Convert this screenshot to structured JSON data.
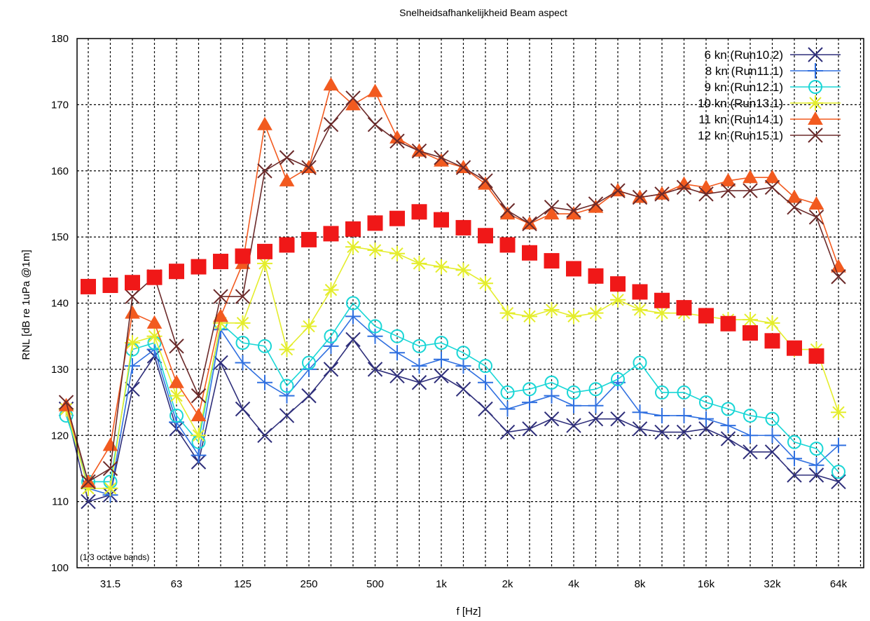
{
  "chart_data": {
    "type": "line",
    "title": "Snelheidsafhankelijkheid Beam aspect",
    "xlabel": "f [Hz]",
    "ylabel": "RNL [dB re 1uPa @1m]",
    "note": "(1/3 octave bands)",
    "x_scale": "log (1/3 octave bands)",
    "x_bands": [
      20,
      25,
      31.5,
      40,
      50,
      63,
      80,
      100,
      125,
      160,
      200,
      250,
      315,
      400,
      500,
      630,
      800,
      1000,
      1250,
      1600,
      2000,
      2500,
      3150,
      4000,
      5000,
      6300,
      8000,
      10000,
      12500,
      16000,
      20000,
      25000,
      31500,
      40000,
      50000,
      63000,
      80000
    ],
    "x_tick_labels": [
      "31.5",
      "63",
      "125",
      "250",
      "500",
      "1k",
      "2k",
      "4k",
      "8k",
      "16k",
      "32k",
      "64k"
    ],
    "x_tick_values": [
      31.5,
      63,
      125,
      250,
      500,
      1000,
      2000,
      4000,
      8000,
      16000,
      32000,
      64000
    ],
    "y_ticks": [
      "100",
      "110",
      "120",
      "130",
      "140",
      "150",
      "160",
      "170",
      "180"
    ],
    "ylim": [
      100,
      180
    ],
    "grid": true,
    "legend_position": "top-right",
    "series": [
      {
        "name": "6 kn (Run10.2)",
        "color": "#2e2e7a",
        "marker": "x",
        "values": [
          124,
          110,
          111,
          127,
          132,
          121,
          116,
          131,
          124,
          120,
          123,
          126,
          130,
          134.5,
          130,
          129,
          128,
          129,
          127,
          124,
          120.5,
          121,
          122.5,
          121.5,
          122.5,
          122.5,
          121,
          120.5,
          120.5,
          121,
          119.5,
          117.5,
          117.5,
          114,
          114,
          113
        ]
      },
      {
        "name": "8 kn (Run11.1)",
        "color": "#3070e0",
        "marker": "plus",
        "values": [
          124,
          112,
          111,
          130.5,
          133,
          122,
          117,
          136,
          131,
          128,
          126,
          130,
          133.5,
          138,
          135,
          132.5,
          130.5,
          131.5,
          130.5,
          128,
          124,
          125,
          126,
          124.5,
          124.5,
          128,
          123.5,
          123,
          123,
          122.5,
          121.5,
          120,
          120,
          116.5,
          115.5,
          118.5
        ]
      },
      {
        "name": "9 kn (Run12.1)",
        "color": "#19d6d6",
        "marker": "circle",
        "values": [
          123,
          113,
          113,
          133,
          134,
          123,
          119,
          137,
          134,
          133.5,
          127.5,
          131,
          135,
          140,
          136.5,
          135,
          133.5,
          134,
          132.5,
          130.5,
          126.5,
          127,
          128,
          126.5,
          127,
          128.5,
          131,
          126.5,
          126.5,
          125,
          124,
          123,
          122.5,
          119,
          118,
          114.5
        ]
      },
      {
        "name": "10 kn (Run13.1)",
        "color": "#e4ed2c",
        "marker": "star",
        "values": [
          124,
          112,
          112,
          134,
          135,
          126,
          120,
          137,
          137,
          146,
          133,
          136.5,
          142,
          148.5,
          148,
          147.5,
          146,
          145.5,
          145,
          143,
          138.5,
          138,
          139,
          138,
          138.5,
          140.5,
          139,
          138.5,
          138.5,
          138,
          137.5,
          137.5,
          137,
          133,
          133,
          123.5
        ]
      },
      {
        "name": "11 kn (Run14.1)",
        "color": "#f25a1f",
        "marker": "triangle",
        "values": [
          124.5,
          113,
          118.5,
          138.5,
          137,
          128,
          123,
          138,
          146,
          167,
          158.5,
          160.5,
          173,
          170,
          172,
          165,
          163,
          161.5,
          160.5,
          158,
          153.5,
          152,
          153.5,
          153.5,
          154.5,
          157,
          156,
          156.5,
          158,
          157.5,
          158.5,
          159,
          159,
          156,
          155,
          145.5
        ]
      },
      {
        "name": "12 kn (Run15.1)",
        "color": "#6b2a2a",
        "marker": "x",
        "values": [
          125,
          113,
          115,
          141,
          144,
          133.5,
          126,
          141,
          141,
          160,
          162,
          160.5,
          167,
          171,
          167,
          164.5,
          163,
          162,
          160.5,
          158.5,
          154,
          152,
          154.5,
          154,
          155,
          157,
          156,
          156.5,
          157.5,
          156.5,
          157,
          157,
          157.5,
          154.5,
          153,
          144
        ]
      },
      {
        "name": "",
        "color": "#f01818",
        "marker": "square",
        "x_start_band": 1,
        "values": [
          142.5,
          142.7,
          143.1,
          143.9,
          144.8,
          145.5,
          146.3,
          147.1,
          147.8,
          148.8,
          149.6,
          150.5,
          151.2,
          152.1,
          152.8,
          153.8,
          152.6,
          151.4,
          150.2,
          148.8,
          147.6,
          146.4,
          145.2,
          144.1,
          142.9,
          141.7,
          140.4,
          139.3,
          138.1,
          136.9,
          135.5,
          134.3,
          133.2,
          132
        ]
      }
    ]
  }
}
